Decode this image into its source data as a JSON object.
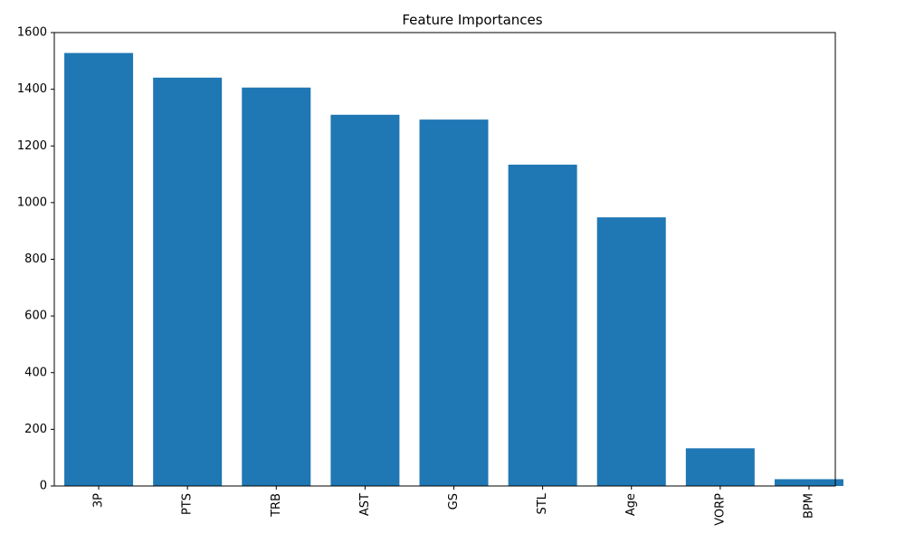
{
  "chart_data": {
    "type": "bar",
    "title": "Feature Importances",
    "xlabel": "",
    "ylabel": "",
    "categories": [
      "3P",
      "PTS",
      "TRB",
      "AST",
      "GS",
      "STL",
      "Age",
      "VORP",
      "BPM"
    ],
    "values": [
      1528,
      1441,
      1406,
      1310,
      1293,
      1134,
      948,
      133,
      24
    ],
    "ylim": [
      0,
      1600
    ],
    "yticks": [
      0,
      200,
      400,
      600,
      800,
      1000,
      1200,
      1400,
      1600
    ],
    "grid": false,
    "bar_color": "#1f77b4",
    "xtick_rotation": "vertical"
  }
}
